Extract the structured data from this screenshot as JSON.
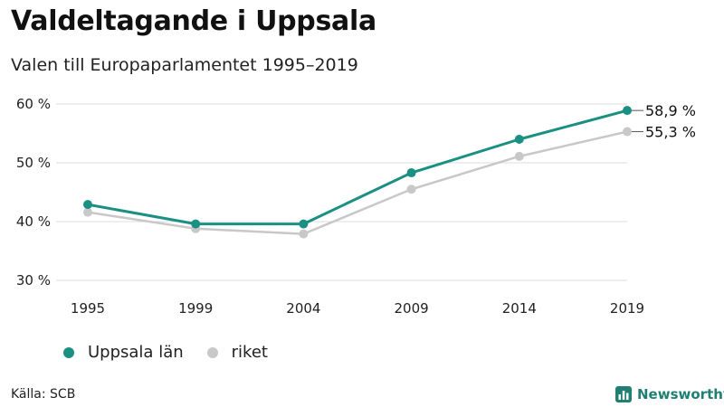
{
  "header": {
    "title": "Valdeltagande i Uppsala",
    "subtitle": "Valen till Europaparlamentet 1995–2019"
  },
  "chart_data": {
    "type": "line",
    "title": "Valdeltagande i Uppsala",
    "subtitle": "Valen till Europaparlamentet 1995–2019",
    "x": [
      "1995",
      "1999",
      "2004",
      "2009",
      "2014",
      "2019"
    ],
    "y_ticks": [
      "30 %",
      "40 %",
      "50 %",
      "60 %"
    ],
    "y_tick_values": [
      30,
      40,
      50,
      60
    ],
    "ylim": [
      30,
      60
    ],
    "grid": true,
    "legend_position": "bottom-left",
    "series": [
      {
        "name": "Uppsala län",
        "color": "#1a9082",
        "values": [
          42.9,
          39.6,
          39.6,
          48.3,
          54.0,
          58.9
        ],
        "end_label": "58,9 %"
      },
      {
        "name": "riket",
        "color": "#c8c8c8",
        "values": [
          41.6,
          38.8,
          37.9,
          45.5,
          51.1,
          55.3
        ],
        "end_label": "55,3 %"
      }
    ]
  },
  "footer": {
    "source": "Källa: SCB",
    "brand": "Newsworthy"
  },
  "colors": {
    "accent": "#1a9082",
    "secondary": "#c8c8c8",
    "grid": "#dddddd",
    "brand": "#1f7f73"
  }
}
